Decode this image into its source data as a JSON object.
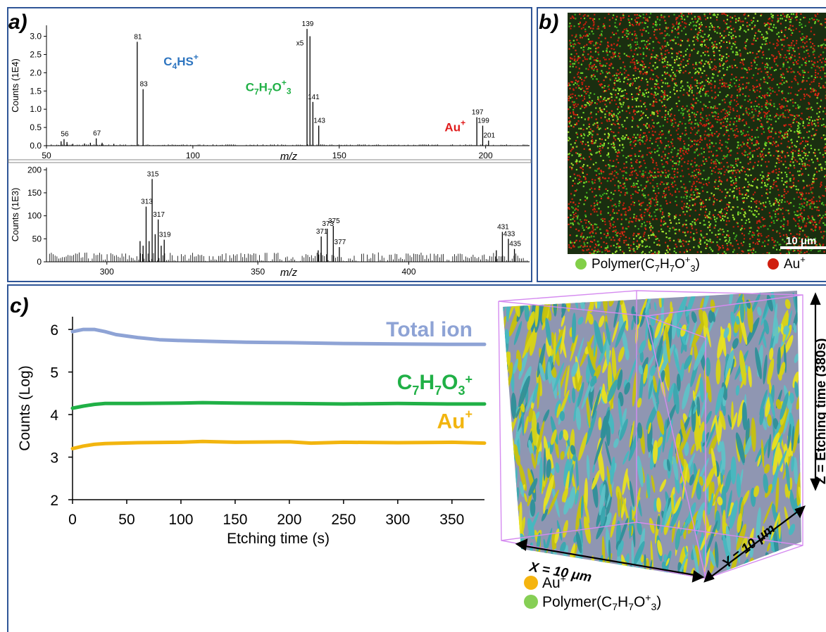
{
  "panel_labels": {
    "a": "a)",
    "b": "b)",
    "c": "c)"
  },
  "colors": {
    "frame": "#2f5597",
    "total_ion": "#8ea3d5",
    "c7h7o3": "#20b046",
    "au": "#f2b50f",
    "c4hs_label": "#2e75c0",
    "c7h7o3_label": "#20b046",
    "au_label_ms": "#e01b1b",
    "polymer_dot": "#82cf48",
    "au_dot_map": "#d01f0f",
    "au_dot_3d": "#f5b40f",
    "polymer_dot_3d": "#86cf55",
    "box_edge": "#d58bf0"
  },
  "panel_a": {
    "chart_data": [
      {
        "type": "bar",
        "xlabel": "m/z",
        "ylabel": "Counts (1E4)",
        "xlim": [
          50,
          215
        ],
        "ylim": [
          0,
          3.3
        ],
        "x_ticks": [
          "50",
          "100",
          "150",
          "200"
        ],
        "y_ticks": [
          "0.0",
          "0.5",
          "1.0",
          "1.5",
          "2.0",
          "2.5",
          "3.0"
        ],
        "peaks": [
          {
            "x": 55,
            "y": 0.12
          },
          {
            "x": 56,
            "y": 0.18,
            "label": "56"
          },
          {
            "x": 57,
            "y": 0.1
          },
          {
            "x": 59,
            "y": 0.05
          },
          {
            "x": 63,
            "y": 0.06
          },
          {
            "x": 65,
            "y": 0.08
          },
          {
            "x": 67,
            "y": 0.2,
            "label": "67"
          },
          {
            "x": 69,
            "y": 0.08
          },
          {
            "x": 73,
            "y": 0.05
          },
          {
            "x": 81,
            "y": 2.85,
            "label": "81"
          },
          {
            "x": 83,
            "y": 1.55,
            "label": "83"
          },
          {
            "x": 139,
            "y": 3.2,
            "label": "139"
          },
          {
            "x": 140,
            "y": 3.0
          },
          {
            "x": 141,
            "y": 1.2,
            "label": "141"
          },
          {
            "x": 143,
            "y": 0.55,
            "label": "143"
          },
          {
            "x": 197,
            "y": 0.78,
            "label": "197"
          },
          {
            "x": 199,
            "y": 0.55,
            "label": "199"
          },
          {
            "x": 201,
            "y": 0.14,
            "label": "201"
          }
        ],
        "annotations": [
          {
            "text": "x5",
            "x": 138.6,
            "y": 2.9
          }
        ],
        "species_labels": [
          {
            "html": "C<tspan font-size=\"12\" dy=\"5\">4</tspan><tspan dy=\"-5\">HS</tspan><tspan font-size=\"12\" dy=\"-8\">+</tspan>",
            "color": "#2e75c0",
            "x": 90,
            "y": 2.2
          },
          {
            "html": "C<tspan font-size=\"12\" dy=\"5\">7</tspan><tspan dy=\"-5\">H</tspan><tspan font-size=\"12\" dy=\"5\">7</tspan><tspan dy=\"-5\">O</tspan><tspan font-size=\"12\" dy=\"-8\">+</tspan><tspan font-size=\"12\" dy=\"12\">3</tspan>",
            "color": "#20b046",
            "x": 118,
            "y": 1.5
          },
          {
            "html": "Au<tspan font-size=\"12\" dy=\"-8\">+</tspan>",
            "color": "#e01b1b",
            "x": 186,
            "y": 0.4
          }
        ]
      },
      {
        "type": "bar",
        "xlabel": "m/z",
        "ylabel": "Counts (1E3)",
        "xlim": [
          280,
          440
        ],
        "ylim": [
          0,
          205
        ],
        "x_ticks": [
          "300",
          "350",
          "400"
        ],
        "y_ticks": [
          "0",
          "50",
          "100",
          "150",
          "200"
        ],
        "peaks": [
          {
            "x": 311,
            "y": 45
          },
          {
            "x": 312,
            "y": 35
          },
          {
            "x": 313,
            "y": 120,
            "label": "313"
          },
          {
            "x": 314,
            "y": 45
          },
          {
            "x": 315,
            "y": 180,
            "label": "315"
          },
          {
            "x": 316,
            "y": 60
          },
          {
            "x": 317,
            "y": 92,
            "label": "317"
          },
          {
            "x": 318,
            "y": 35
          },
          {
            "x": 319,
            "y": 48,
            "label": "319"
          },
          {
            "x": 370,
            "y": 25
          },
          {
            "x": 371,
            "y": 55,
            "label": "371"
          },
          {
            "x": 373,
            "y": 72,
            "label": "373"
          },
          {
            "x": 375,
            "y": 78,
            "label": "375"
          },
          {
            "x": 377,
            "y": 32,
            "label": "377"
          },
          {
            "x": 429,
            "y": 25
          },
          {
            "x": 431,
            "y": 65,
            "label": "431"
          },
          {
            "x": 433,
            "y": 50,
            "label": "433"
          },
          {
            "x": 435,
            "y": 28,
            "label": "435"
          }
        ]
      }
    ]
  },
  "panel_b": {
    "scale_bar": "10 μm",
    "legend": [
      {
        "text": "Polymer(C<tspan font-size=\"13\" dy=\"5\">7</tspan><tspan dy=\"-5\">H</tspan><tspan font-size=\"13\" dy=\"5\">7</tspan><tspan dy=\"-5\">O</tspan><tspan font-size=\"13\" dy=\"-8\">+</tspan><tspan font-size=\"13\" dy=\"13\">3</tspan><tspan dy=\"-5\">)</tspan>",
        "color": "#82cf48"
      },
      {
        "text": "Au<tspan font-size=\"13\" dy=\"-8\">+</tspan>",
        "color": "#d01f0f"
      }
    ]
  },
  "panel_c": {
    "chart_data": {
      "type": "line",
      "xlabel": "Etching time (s)",
      "ylabel": "Counts (Log)",
      "xlim": [
        0,
        380
      ],
      "ylim": [
        2,
        6.3
      ],
      "x_ticks": [
        "0",
        "50",
        "100",
        "150",
        "200",
        "250",
        "300",
        "350"
      ],
      "y_ticks": [
        "2",
        "3",
        "4",
        "5",
        "6"
      ],
      "series": [
        {
          "name": "Total ion",
          "x": [
            0,
            10,
            20,
            30,
            40,
            60,
            80,
            100,
            130,
            160,
            200,
            250,
            300,
            350,
            380
          ],
          "y": [
            5.95,
            6.0,
            6.0,
            5.95,
            5.88,
            5.81,
            5.76,
            5.74,
            5.72,
            5.7,
            5.69,
            5.67,
            5.66,
            5.65,
            5.65
          ]
        },
        {
          "name": "C7H7O3+",
          "x": [
            0,
            10,
            20,
            30,
            60,
            100,
            120,
            150,
            200,
            250,
            300,
            350,
            380
          ],
          "y": [
            4.15,
            4.2,
            4.24,
            4.26,
            4.26,
            4.27,
            4.28,
            4.27,
            4.26,
            4.25,
            4.26,
            4.25,
            4.25
          ]
        },
        {
          "name": "Au+",
          "x": [
            0,
            10,
            20,
            30,
            60,
            100,
            120,
            150,
            200,
            220,
            250,
            300,
            350,
            380
          ],
          "y": [
            3.2,
            3.26,
            3.3,
            3.32,
            3.34,
            3.35,
            3.37,
            3.35,
            3.36,
            3.33,
            3.35,
            3.34,
            3.35,
            3.33
          ]
        }
      ],
      "series_labels": [
        {
          "html": "Total ion",
          "color": "#8ea3d5",
          "y": 5.84
        },
        {
          "html": "C<tspan font-size=\"18\" dy=\"8\">7</tspan><tspan dy=\"-8\">H</tspan><tspan font-size=\"18\" dy=\"8\">7</tspan><tspan dy=\"-8\">O</tspan><tspan font-size=\"18\" dy=\"8\">3</tspan><tspan font-size=\"18\" dy=\"-16\">+</tspan>",
          "color": "#20b046",
          "y": 4.6
        },
        {
          "html": "Au<tspan font-size=\"18\" dy=\"-14\">+</tspan>",
          "color": "#f2b50f",
          "y": 3.68
        }
      ]
    },
    "render3d": {
      "x_axis": "X = 10 μm",
      "y_axis": "Y = 10 μm",
      "z_axis": "Z = Etching time (380s)",
      "legend": [
        {
          "text": "Au<tspan font-size=\"14\" dy=\"-8\">+</tspan>",
          "color": "#f5b40f"
        },
        {
          "text": "Polymer(C<tspan font-size=\"14\" dy=\"5\">7</tspan><tspan dy=\"-5\">H</tspan><tspan font-size=\"14\" dy=\"5\">7</tspan><tspan dy=\"-5\">O</tspan><tspan font-size=\"14\" dy=\"-8\">+</tspan><tspan font-size=\"14\" dy=\"13\">3</tspan><tspan dy=\"-5\">)</tspan>",
          "color": "#86cf55"
        }
      ]
    }
  }
}
